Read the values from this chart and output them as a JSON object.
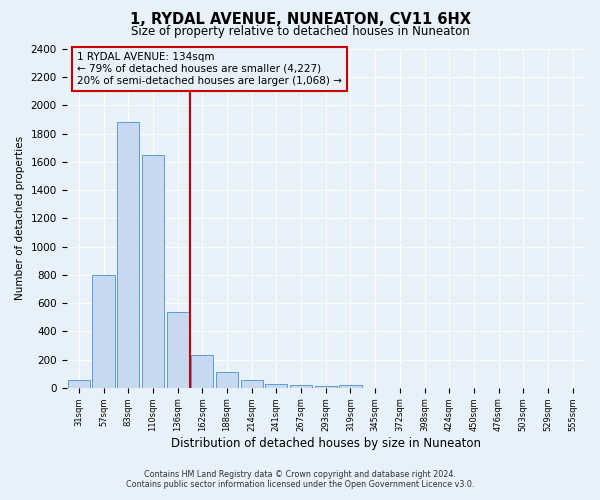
{
  "title": "1, RYDAL AVENUE, NUNEATON, CV11 6HX",
  "subtitle": "Size of property relative to detached houses in Nuneaton",
  "xlabel": "Distribution of detached houses by size in Nuneaton",
  "ylabel": "Number of detached properties",
  "bar_labels": [
    "31sqm",
    "57sqm",
    "83sqm",
    "110sqm",
    "136sqm",
    "162sqm",
    "188sqm",
    "214sqm",
    "241sqm",
    "267sqm",
    "293sqm",
    "319sqm",
    "345sqm",
    "372sqm",
    "398sqm",
    "424sqm",
    "450sqm",
    "476sqm",
    "503sqm",
    "529sqm",
    "555sqm"
  ],
  "bar_values": [
    55,
    800,
    1880,
    1650,
    540,
    235,
    110,
    55,
    30,
    20,
    15,
    20,
    0,
    0,
    0,
    0,
    0,
    0,
    0,
    0,
    0
  ],
  "bar_color": "#c6d9f0",
  "bar_edge_color": "#5b9bd5",
  "vline_x_index": 4,
  "vline_color": "#cc0000",
  "annotation_title": "1 RYDAL AVENUE: 134sqm",
  "annotation_line1": "← 79% of detached houses are smaller (4,227)",
  "annotation_line2": "20% of semi-detached houses are larger (1,068) →",
  "annotation_box_edge": "#cc0000",
  "ylim": [
    0,
    2400
  ],
  "yticks": [
    0,
    200,
    400,
    600,
    800,
    1000,
    1200,
    1400,
    1600,
    1800,
    2000,
    2200,
    2400
  ],
  "footer_line1": "Contains HM Land Registry data © Crown copyright and database right 2024.",
  "footer_line2": "Contains public sector information licensed under the Open Government Licence v3.0.",
  "bg_color": "#e8f0f8",
  "grid_color": "#ffffff"
}
